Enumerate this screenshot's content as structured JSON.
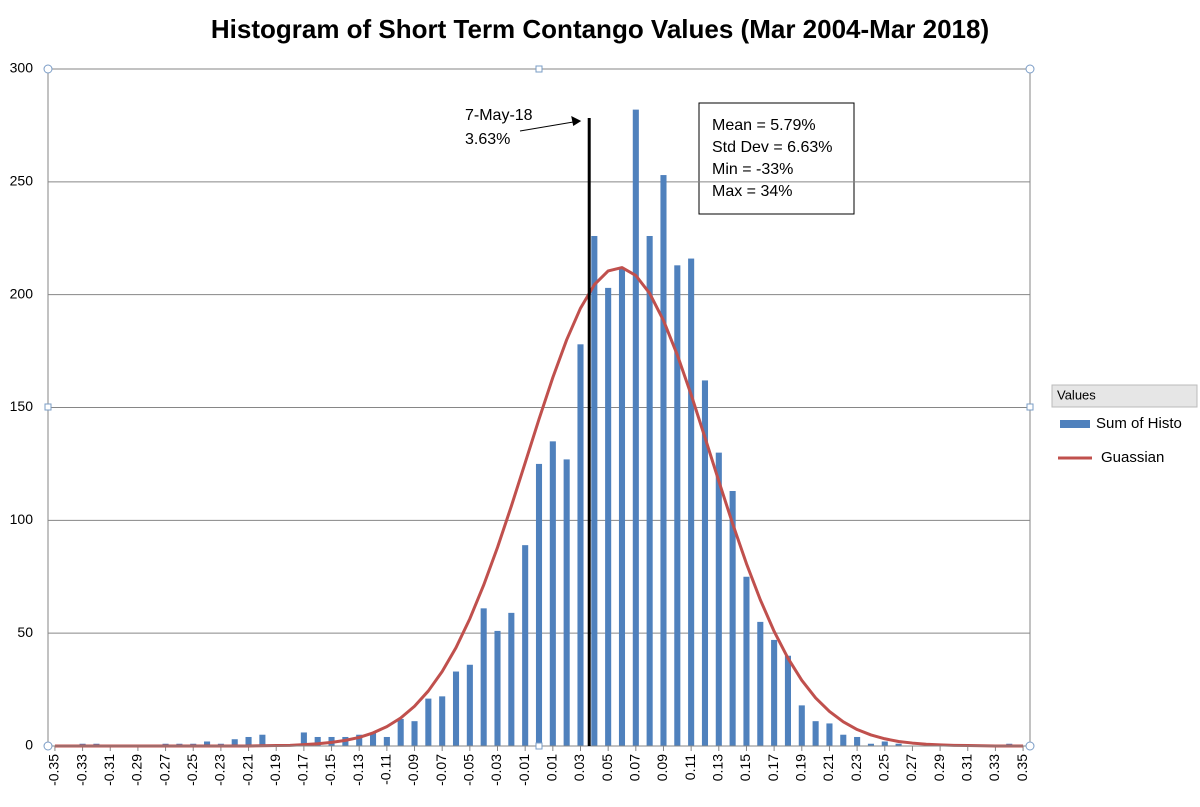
{
  "chart_data": {
    "type": "histogram",
    "title": "Histogram of Short Term Contango Values (Mar 2004-Mar 2018)",
    "x": [
      -0.35,
      -0.34,
      -0.33,
      -0.32,
      -0.31,
      -0.3,
      -0.29,
      -0.28,
      -0.27,
      -0.26,
      -0.25,
      -0.24,
      -0.23,
      -0.22,
      -0.21,
      -0.2,
      -0.19,
      -0.18,
      -0.17,
      -0.16,
      -0.15,
      -0.14,
      -0.13,
      -0.12,
      -0.11,
      -0.1,
      -0.09,
      -0.08,
      -0.07,
      -0.06,
      -0.05,
      -0.04,
      -0.03,
      -0.02,
      -0.01,
      0,
      0.01,
      0.02,
      0.03,
      0.04,
      0.05,
      0.06,
      0.07,
      0.08,
      0.09,
      0.1,
      0.11,
      0.12,
      0.13,
      0.14,
      0.15,
      0.16,
      0.17,
      0.18,
      0.19,
      0.2,
      0.21,
      0.22,
      0.23,
      0.24,
      0.25,
      0.26,
      0.27,
      0.28,
      0.29,
      0.3,
      0.31,
      0.32,
      0.33,
      0.34,
      0.35
    ],
    "series": [
      {
        "name": "Sum of Histo",
        "color": "#4f81bd",
        "kind": "bar",
        "values": [
          0,
          0,
          1,
          1,
          0,
          0,
          0,
          0,
          1,
          1,
          1,
          2,
          1,
          3,
          4,
          5,
          0,
          0,
          6,
          4,
          4,
          4,
          5,
          6,
          4,
          12,
          11,
          21,
          22,
          33,
          36,
          61,
          51,
          59,
          89,
          125,
          135,
          127,
          178,
          226,
          203,
          212,
          282,
          226,
          253,
          213,
          216,
          162,
          130,
          113,
          75,
          55,
          47,
          40,
          18,
          11,
          10,
          5,
          4,
          1,
          2,
          1,
          0,
          0,
          1,
          0,
          0,
          0,
          0,
          1,
          0
        ]
      },
      {
        "name": "Guassian",
        "color": "#c0504d",
        "kind": "line",
        "values": [
          0,
          0,
          0,
          0,
          0,
          0,
          0,
          0,
          0,
          0,
          0,
          0,
          0,
          0,
          0,
          0.1,
          0.2,
          0.3,
          0.6,
          1.0,
          1.6,
          2.5,
          3.8,
          5.8,
          8.6,
          12.4,
          17.6,
          24.4,
          33.0,
          43.6,
          56.4,
          71.3,
          88.0,
          106.3,
          125.5,
          144.8,
          163.3,
          180.0,
          194.0,
          204.4,
          210.5,
          212.0,
          208.5,
          200.6,
          188.6,
          173.3,
          155.7,
          136.7,
          117.4,
          98.5,
          80.8,
          64.8,
          50.8,
          38.9,
          29.1,
          21.3,
          15.3,
          10.7,
          7.3,
          4.9,
          3.2,
          2.0,
          1.3,
          0.8,
          0.5,
          0.3,
          0.2,
          0.1,
          0,
          0,
          0
        ]
      }
    ],
    "xlim": [
      -0.355,
      0.355
    ],
    "xticks": [
      -0.35,
      -0.33,
      -0.31,
      -0.29,
      -0.27,
      -0.25,
      -0.23,
      -0.21,
      -0.19,
      -0.17,
      -0.15,
      -0.13,
      -0.11,
      -0.09,
      -0.07,
      -0.05,
      -0.03,
      -0.01,
      0.01,
      0.03,
      0.05,
      0.07,
      0.09,
      0.11,
      0.13,
      0.15,
      0.17,
      0.19,
      0.21,
      0.23,
      0.25,
      0.27,
      0.29,
      0.31,
      0.33,
      0.35
    ],
    "ylim": [
      0,
      300
    ],
    "yticks": [
      0,
      50,
      100,
      150,
      200,
      250,
      300
    ],
    "grid": true,
    "marker": {
      "date": "7-May-18",
      "x": 0.0363,
      "label": "3.63%",
      "color": "#000000"
    },
    "stats": [
      "Mean = 5.79%",
      "Std Dev = 6.63%",
      "Min = -33%",
      "Max = 34%"
    ],
    "legend": {
      "title": "Values",
      "position": "right"
    }
  }
}
